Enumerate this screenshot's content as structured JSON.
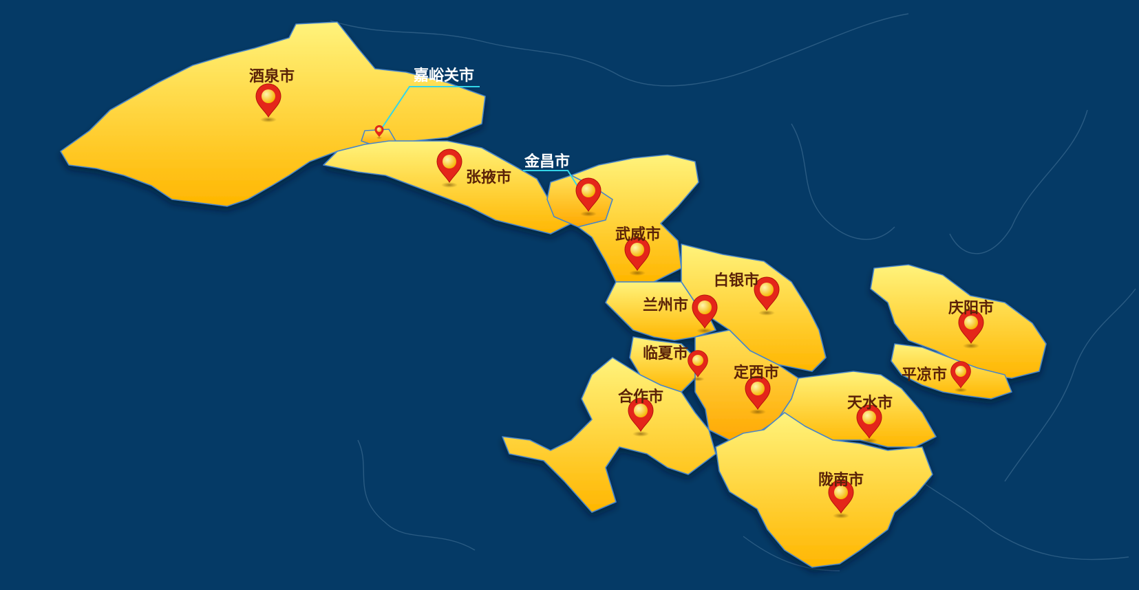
{
  "map": {
    "background_color": "#053a66",
    "region_fill_light": "#fff27a",
    "region_fill_dark": "#ffb800",
    "region_border_color": "#4a86c8",
    "callout_line_color": "#33d6e8",
    "marker_color": "#e4261a",
    "marker_center_color": "#ffd21a",
    "marker_icon": "map-pin-icon"
  },
  "regions": [
    {
      "id": "jiuquan",
      "label": "酒泉市"
    },
    {
      "id": "jiayuguan",
      "label": "嘉峪关市"
    },
    {
      "id": "zhangye",
      "label": "张掖市"
    },
    {
      "id": "jinchang",
      "label": "金昌市"
    },
    {
      "id": "wuwei",
      "label": "武威市"
    },
    {
      "id": "baiyin",
      "label": "白银市"
    },
    {
      "id": "lanzhou",
      "label": "兰州市"
    },
    {
      "id": "linxia",
      "label": "临夏市"
    },
    {
      "id": "dingxi",
      "label": "定西市"
    },
    {
      "id": "gannan",
      "label": "合作市"
    },
    {
      "id": "tianshui",
      "label": "天水市"
    },
    {
      "id": "longnan",
      "label": "陇南市"
    },
    {
      "id": "qingyang",
      "label": "庆阳市"
    },
    {
      "id": "pingliang",
      "label": "平凉市"
    }
  ]
}
